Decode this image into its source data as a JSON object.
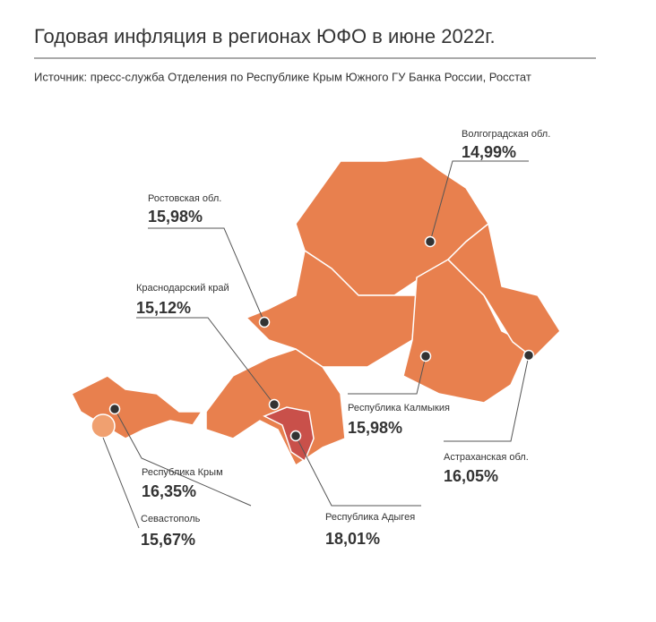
{
  "title": "Годовая инфляция в регионах ЮФО в июне 2022г.",
  "source": "Источник: пресс-служба Отделения по Республике Крым Южного ГУ Банка России, Росстат",
  "regions": [
    {
      "name": "Волгоградская обл.",
      "value": "14,99%"
    },
    {
      "name": "Ростовская обл.",
      "value": "15,98%"
    },
    {
      "name": "Краснодарский край",
      "value": "15,12%"
    },
    {
      "name": "Республика Калмыкия",
      "value": "15,98%"
    },
    {
      "name": "Астраханская обл.",
      "value": "16,05%"
    },
    {
      "name": "Республика Крым",
      "value": "16,35%"
    },
    {
      "name": "Севастополь",
      "value": "15,67%"
    },
    {
      "name": "Республика Адыгея",
      "value": "18,01%"
    }
  ]
}
